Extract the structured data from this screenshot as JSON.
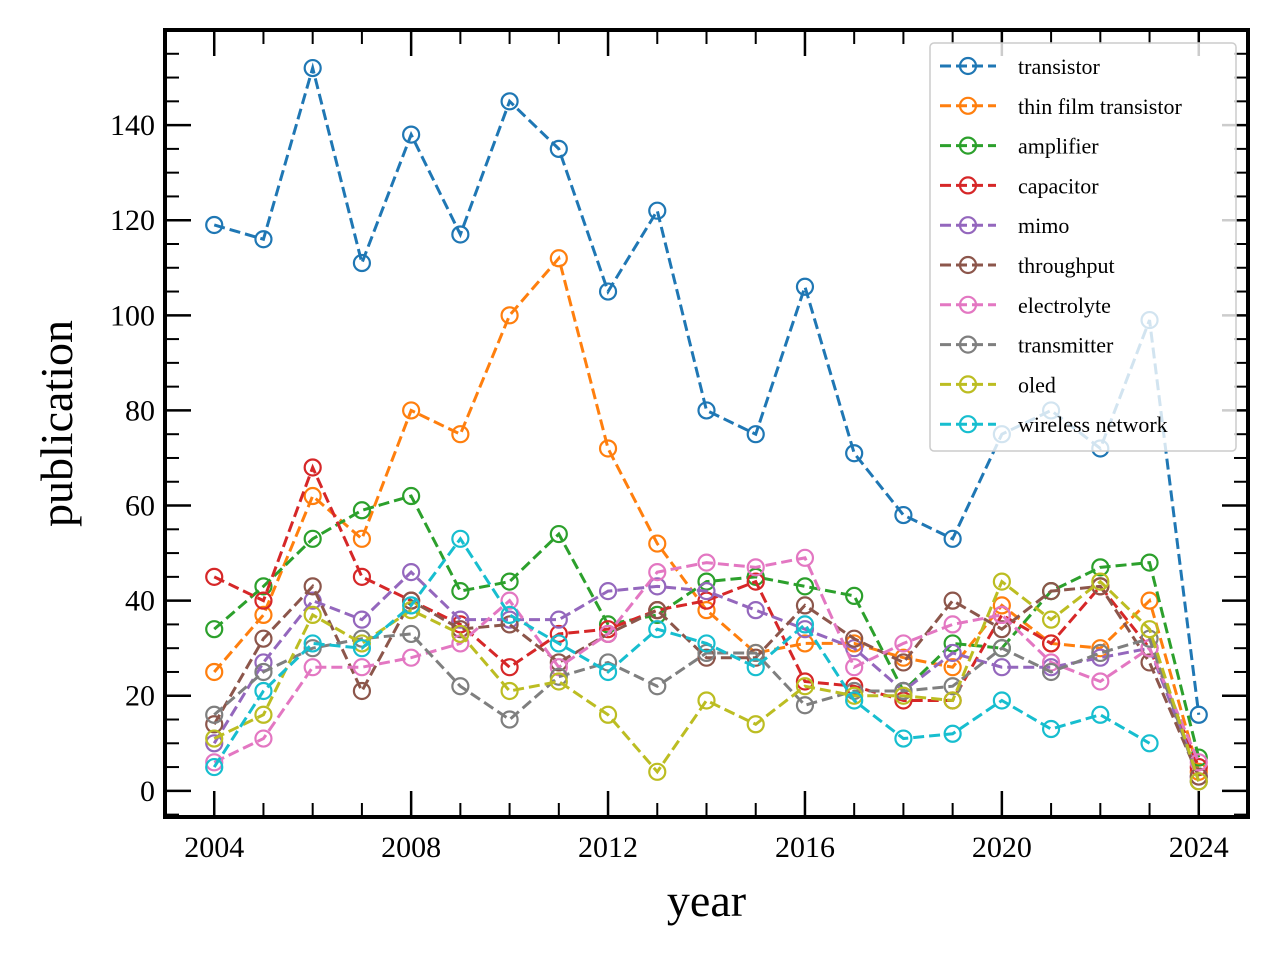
{
  "chart_data": {
    "type": "line",
    "title": "",
    "xlabel": "year",
    "ylabel": "publication",
    "xlim": [
      2003,
      2025
    ],
    "ylim": [
      -5.5,
      160
    ],
    "xticks": [
      2004,
      2008,
      2012,
      2016,
      2020,
      2024
    ],
    "yticks": [
      0,
      20,
      40,
      60,
      80,
      100,
      120,
      140
    ],
    "grid": false,
    "legend_position": "top-right",
    "x": [
      2004,
      2005,
      2006,
      2007,
      2008,
      2009,
      2010,
      2011,
      2012,
      2013,
      2014,
      2015,
      2016,
      2017,
      2018,
      2019,
      2020,
      2021,
      2022,
      2023,
      2024
    ],
    "series": [
      {
        "name": "transistor",
        "color": "#1f77b4",
        "values": [
          119,
          116,
          152,
          111,
          138,
          117,
          145,
          135,
          105,
          122,
          80,
          75,
          106,
          71,
          58,
          53,
          75,
          80,
          72,
          99,
          16
        ]
      },
      {
        "name": "thin film transistor",
        "color": "#ff7f0e",
        "values": [
          25,
          37,
          62,
          53,
          80,
          75,
          100,
          112,
          72,
          52,
          38,
          29,
          31,
          31,
          28,
          26,
          39,
          31,
          30,
          40,
          4
        ]
      },
      {
        "name": "amplifier",
        "color": "#2ca02c",
        "values": [
          34,
          43,
          53,
          59,
          62,
          42,
          44,
          54,
          35,
          37,
          44,
          45,
          43,
          41,
          21,
          31,
          30,
          42,
          47,
          48,
          7
        ]
      },
      {
        "name": "capacitor",
        "color": "#d62728",
        "values": [
          45,
          40,
          68,
          45,
          40,
          35,
          26,
          33,
          34,
          38,
          40,
          44,
          23,
          22,
          19,
          19,
          37,
          31,
          43,
          30,
          5
        ]
      },
      {
        "name": "mimo",
        "color": "#9467bd",
        "values": [
          10,
          27,
          40,
          36,
          46,
          36,
          36,
          36,
          42,
          43,
          42,
          38,
          34,
          30,
          21,
          29,
          26,
          26,
          28,
          30,
          3
        ]
      },
      {
        "name": "throughput",
        "color": "#8c564b",
        "values": [
          14,
          32,
          43,
          21,
          40,
          34,
          35,
          27,
          33,
          38,
          28,
          28,
          39,
          32,
          27,
          40,
          34,
          42,
          43,
          27,
          3
        ]
      },
      {
        "name": "electrolyte",
        "color": "#e377c2",
        "values": [
          6,
          11,
          26,
          26,
          28,
          31,
          40,
          26,
          33,
          46,
          48,
          47,
          49,
          26,
          31,
          35,
          37,
          27,
          23,
          30,
          6
        ]
      },
      {
        "name": "transmitter",
        "color": "#7f7f7f",
        "values": [
          16,
          25,
          30,
          32,
          33,
          22,
          15,
          24,
          27,
          22,
          29,
          29,
          18,
          21,
          21,
          22,
          30,
          25,
          29,
          32,
          2
        ]
      },
      {
        "name": "oled",
        "color": "#bcbd22",
        "values": [
          11,
          16,
          37,
          31,
          38,
          33,
          21,
          23,
          16,
          4,
          19,
          14,
          22,
          20,
          20,
          19,
          44,
          36,
          44,
          34,
          2
        ]
      },
      {
        "name": "wireless network",
        "color": "#17becf",
        "values": [
          5,
          21,
          31,
          30,
          39,
          53,
          37,
          31,
          25,
          34,
          31,
          26,
          35,
          19,
          11,
          12,
          19,
          13,
          16,
          10,
          null
        ]
      }
    ]
  }
}
